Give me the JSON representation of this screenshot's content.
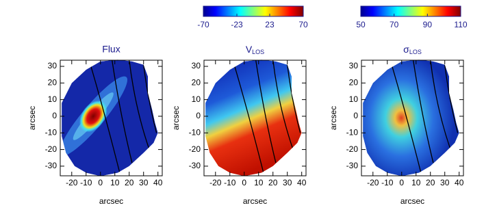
{
  "chart_data": [
    {
      "type": "map",
      "title": "Flux",
      "xlabel": "arcsec",
      "ylabel": "arcsec",
      "xlim": [
        -28,
        43
      ],
      "ylim": [
        -35.8,
        33.7
      ],
      "xticks": [
        -20,
        -10,
        0,
        10,
        20,
        30,
        40
      ],
      "yticks": [
        -30,
        -20,
        -10,
        0,
        10,
        20,
        30
      ]
    },
    {
      "type": "map",
      "title": {
        "main": "V",
        "sub": "LOS"
      },
      "xlabel": "arcsec",
      "ylabel": "arcsec",
      "xlim": [
        -28,
        43
      ],
      "ylim": [
        -35.8,
        33.7
      ],
      "xticks": [
        -20,
        -10,
        0,
        10,
        20,
        30,
        40
      ],
      "yticks": [
        -30,
        -20,
        -10,
        0,
        10,
        20,
        30
      ],
      "colorbar": {
        "lim": [
          -70,
          70
        ],
        "ticks": [
          -70,
          -23,
          23,
          70
        ]
      }
    },
    {
      "type": "map",
      "title": {
        "main": "σ",
        "sub": "LOS"
      },
      "xlabel": "arcsec",
      "ylabel": "arcsec",
      "xlim": [
        -28,
        43
      ],
      "ylim": [
        -35.8,
        33.7
      ],
      "xticks": [
        -20,
        -10,
        0,
        10,
        20,
        30,
        40
      ],
      "yticks": [
        -30,
        -20,
        -10,
        0,
        10,
        20,
        30
      ],
      "colorbar": {
        "lim": [
          50,
          110
        ],
        "ticks": [
          50,
          70,
          90,
          110
        ]
      }
    }
  ]
}
